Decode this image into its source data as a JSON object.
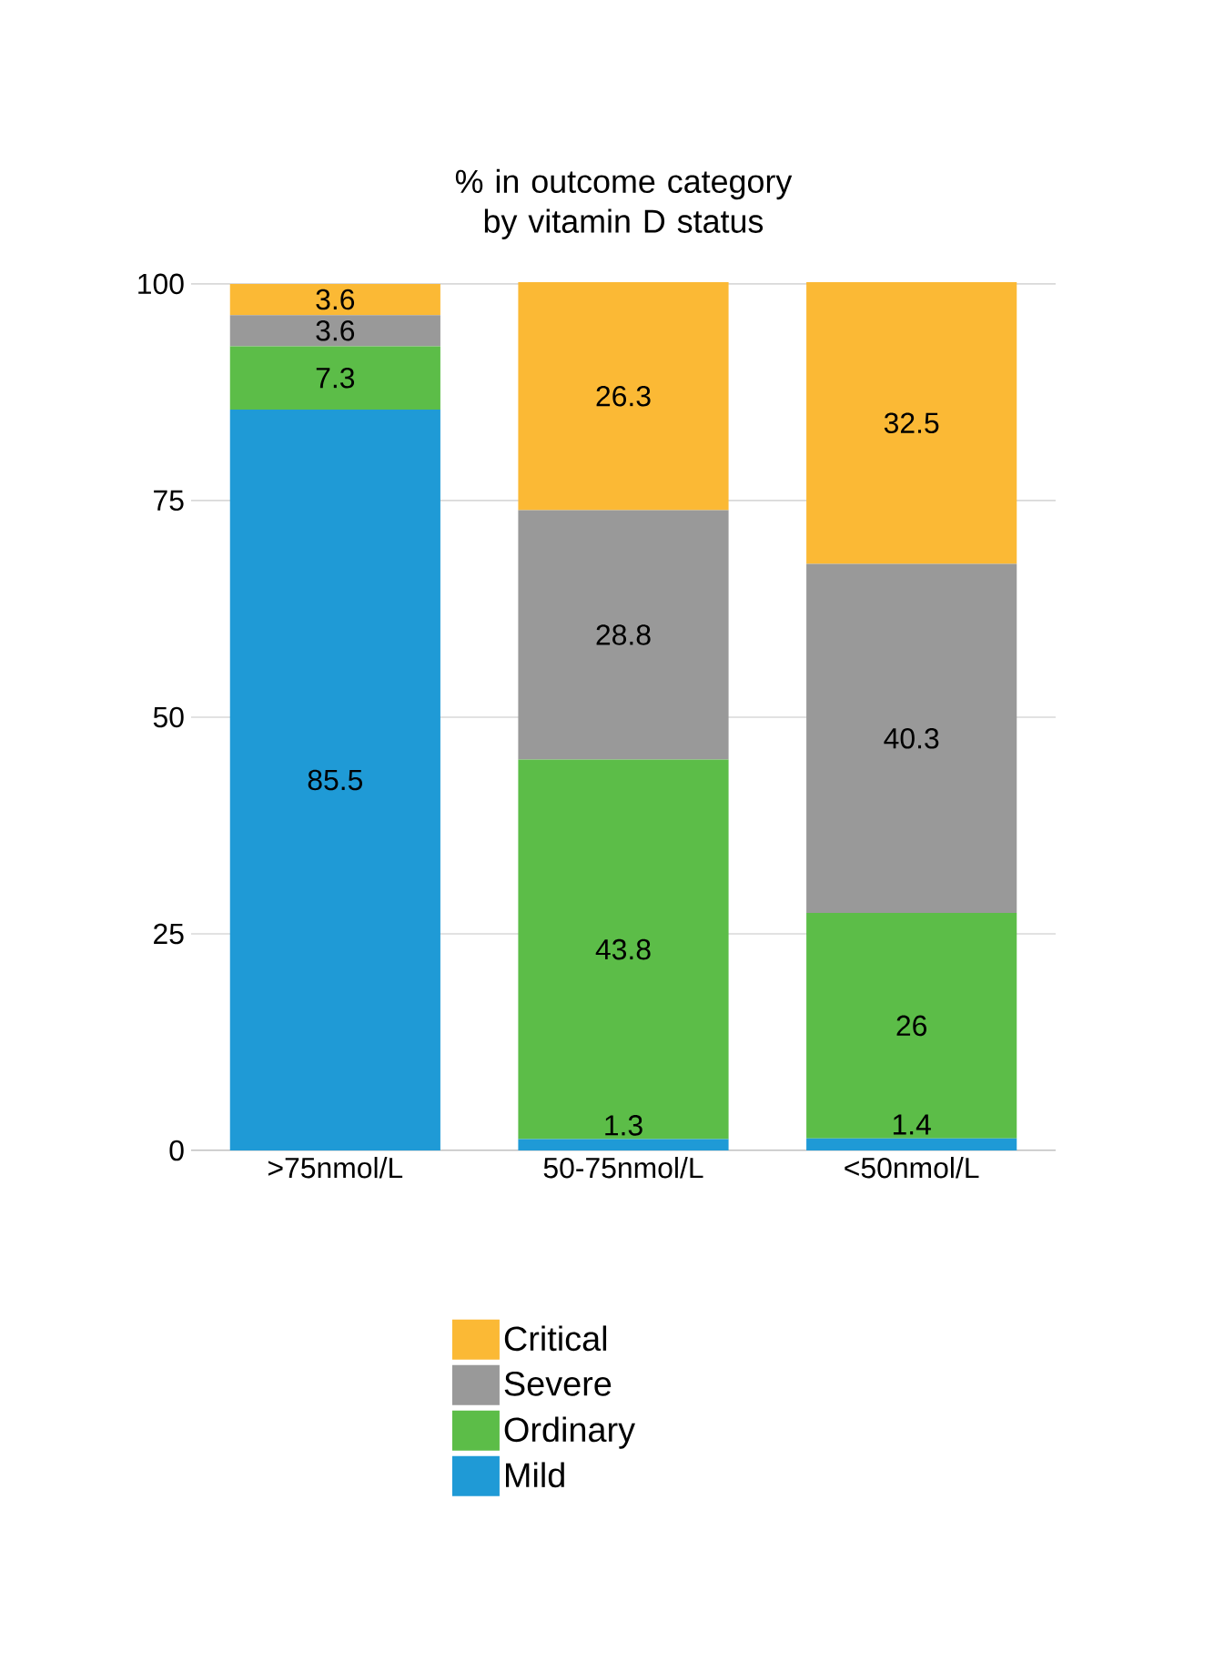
{
  "chart_data": {
    "type": "bar",
    "stacked": true,
    "title": "% in outcome category by vitamin D status",
    "categories": [
      ">75nmol/L",
      "50-75nmol/L",
      "<50nmol/L"
    ],
    "series": [
      {
        "name": "Mild",
        "color": "#1f9ad6",
        "values": [
          85.5,
          1.3,
          1.4
        ]
      },
      {
        "name": "Ordinary",
        "color": "#5cbd48",
        "values": [
          7.3,
          43.8,
          26
        ]
      },
      {
        "name": "Severe",
        "color": "#999999",
        "values": [
          3.6,
          28.8,
          40.3
        ]
      },
      {
        "name": "Critical",
        "color": "#fbb935",
        "values": [
          3.6,
          26.3,
          32.5
        ]
      }
    ],
    "ylim": [
      0,
      100.2
    ],
    "yticks": [
      0,
      25,
      50,
      75,
      100
    ],
    "grid": "y",
    "legend": "bottom",
    "data_labels": true
  }
}
